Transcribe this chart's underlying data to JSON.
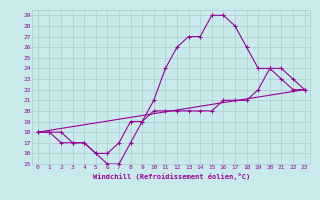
{
  "xlabel": "Windchill (Refroidissement éolien,°C)",
  "bg_color": "#c8eaea",
  "line_color": "#990099",
  "grid_color": "#aacccc",
  "xlim": [
    -0.5,
    23.5
  ],
  "ylim": [
    15,
    29.5
  ],
  "yticks": [
    15,
    16,
    17,
    18,
    19,
    20,
    21,
    22,
    23,
    24,
    25,
    26,
    27,
    28,
    29
  ],
  "xticks": [
    0,
    1,
    2,
    3,
    4,
    5,
    6,
    7,
    8,
    9,
    10,
    11,
    12,
    13,
    14,
    15,
    16,
    17,
    18,
    19,
    20,
    21,
    22,
    23
  ],
  "lines": [
    {
      "x": [
        0,
        1,
        2,
        3,
        4,
        5,
        6,
        7,
        8,
        9,
        10,
        11,
        12,
        13,
        14,
        15,
        16,
        17,
        18,
        19,
        20,
        21,
        22,
        23
      ],
      "y": [
        18,
        18,
        18,
        17,
        17,
        16,
        15,
        15,
        17,
        19,
        21,
        24,
        26,
        27,
        27,
        29,
        29,
        28,
        26,
        24,
        24,
        23,
        22,
        22
      ],
      "marker": true
    },
    {
      "x": [
        0,
        1,
        2,
        3,
        4,
        5,
        6,
        7,
        8,
        9,
        10,
        11,
        12,
        13,
        14,
        15,
        16,
        17,
        18,
        19,
        20,
        21,
        22,
        23
      ],
      "y": [
        18,
        18,
        17,
        17,
        17,
        16,
        16,
        17,
        19,
        19,
        20,
        20,
        20,
        20,
        20,
        20,
        21,
        21,
        21,
        22,
        24,
        24,
        23,
        22
      ],
      "marker": true
    },
    {
      "x": [
        0,
        23
      ],
      "y": [
        18,
        22
      ],
      "marker": false
    }
  ]
}
